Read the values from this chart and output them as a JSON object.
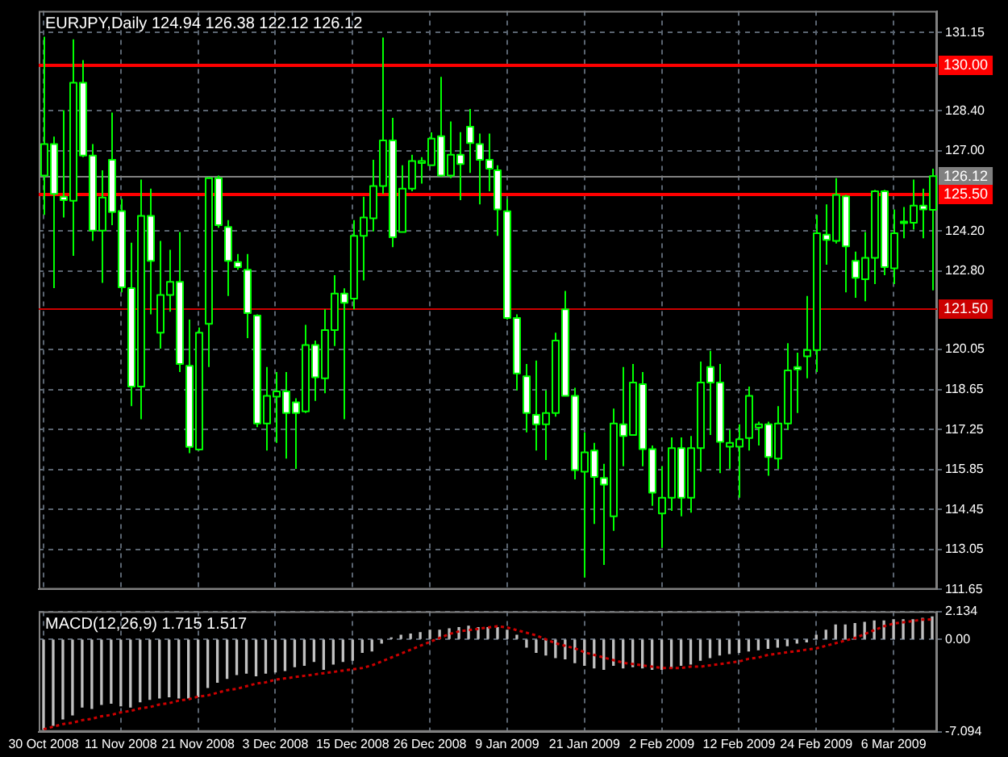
{
  "chart_data": [
    {
      "type": "candlestick",
      "title": "EURJPY,Daily 124.94 126.38 122.12 126.12",
      "ohlc": [
        [
          126.14,
          131.0,
          124.76,
          127.24
        ],
        [
          127.24,
          127.5,
          122.2,
          125.5
        ],
        [
          125.4,
          128.43,
          124.67,
          125.28
        ],
        [
          125.26,
          130.91,
          123.33,
          129.39
        ],
        [
          129.39,
          130.18,
          126.78,
          126.84
        ],
        [
          126.84,
          127.24,
          123.85,
          124.21
        ],
        [
          124.21,
          126.32,
          122.38,
          125.37
        ],
        [
          126.69,
          128.34,
          124.4,
          124.86
        ],
        [
          124.9,
          125.32,
          122.05,
          122.23
        ],
        [
          122.2,
          123.79,
          118.07,
          118.75
        ],
        [
          118.75,
          126.0,
          117.61,
          124.73
        ],
        [
          124.73,
          125.68,
          121.28,
          123.15
        ],
        [
          120.64,
          123.85,
          120.08,
          121.96
        ],
        [
          121.96,
          123.54,
          121.37,
          122.42
        ],
        [
          122.42,
          124.16,
          119.26,
          119.54
        ],
        [
          119.48,
          121.1,
          116.42,
          116.64
        ],
        [
          116.55,
          120.82,
          116.51,
          120.64
        ],
        [
          120.95,
          126.09,
          119.44,
          126.05
        ],
        [
          126.05,
          126.14,
          124.31,
          124.4
        ],
        [
          124.34,
          124.58,
          121.92,
          123.15
        ],
        [
          123.11,
          123.39,
          122.84,
          122.93
        ],
        [
          122.84,
          123.39,
          120.45,
          121.32
        ],
        [
          121.24,
          121.28,
          117.33,
          117.46
        ],
        [
          117.46,
          119.44,
          116.51,
          118.43
        ],
        [
          118.4,
          119.26,
          116.78,
          118.58
        ],
        [
          118.58,
          119.26,
          116.23,
          117.83
        ],
        [
          118.2,
          118.34,
          115.87,
          117.83
        ],
        [
          117.88,
          120.91,
          117.83,
          120.21
        ],
        [
          120.21,
          120.36,
          118.25,
          119.08
        ],
        [
          119.04,
          121.46,
          118.52,
          120.73
        ],
        [
          120.73,
          122.65,
          120.17,
          122.01
        ],
        [
          122.01,
          122.19,
          117.61,
          121.68
        ],
        [
          121.83,
          124.58,
          121.46,
          124.03
        ],
        [
          124.03,
          125.4,
          122.47,
          124.67
        ],
        [
          124.64,
          126.69,
          124.18,
          125.77
        ],
        [
          125.77,
          130.97,
          125.5,
          127.37
        ],
        [
          127.37,
          128.16,
          123.63,
          123.98
        ],
        [
          124.16,
          126.5,
          124.16,
          125.68
        ],
        [
          125.68,
          126.87,
          125.59,
          126.65
        ],
        [
          126.58,
          126.78,
          125.86,
          126.65
        ],
        [
          126.5,
          127.65,
          126.5,
          127.43
        ],
        [
          127.52,
          129.59,
          126.09,
          126.14
        ],
        [
          126.14,
          128.03,
          126.05,
          126.87
        ],
        [
          126.87,
          127.66,
          125.28,
          126.54
        ],
        [
          127.85,
          128.47,
          126.23,
          127.28
        ],
        [
          127.24,
          127.61,
          125.13,
          126.69
        ],
        [
          126.69,
          127.61,
          125.59,
          126.38
        ],
        [
          126.32,
          126.5,
          124.03,
          124.95
        ],
        [
          124.89,
          125.32,
          121.1,
          121.15
        ],
        [
          121.15,
          121.28,
          118.62,
          119.21
        ],
        [
          119.11,
          119.54,
          117.15,
          117.83
        ],
        [
          117.76,
          119.66,
          116.51,
          117.43
        ],
        [
          117.43,
          118.62,
          116.18,
          117.83
        ],
        [
          117.83,
          120.64,
          117.7,
          120.36
        ],
        [
          121.46,
          122.1,
          118.43,
          118.43
        ],
        [
          118.43,
          118.71,
          115.5,
          115.83
        ],
        [
          115.77,
          117.15,
          112.07,
          116.45
        ],
        [
          116.51,
          116.78,
          113.94,
          115.59
        ],
        [
          115.55,
          116.05,
          112.51,
          115.32
        ],
        [
          114.21,
          117.98,
          113.7,
          117.46
        ],
        [
          117.43,
          119.44,
          115.96,
          117.02
        ],
        [
          117.06,
          119.54,
          117.06,
          118.89
        ],
        [
          118.84,
          119.26,
          115.96,
          116.56
        ],
        [
          116.56,
          116.69,
          114.58,
          115.04
        ],
        [
          114.31,
          115.96,
          113.11,
          114.86
        ],
        [
          114.86,
          116.97,
          114.4,
          116.6
        ],
        [
          116.6,
          116.97,
          114.21,
          114.86
        ],
        [
          114.86,
          117.02,
          114.34,
          116.6
        ],
        [
          116.6,
          119.63,
          115.77,
          118.89
        ],
        [
          119.44,
          120.0,
          117.06,
          118.89
        ],
        [
          118.89,
          119.54,
          115.72,
          116.82
        ],
        [
          116.65,
          117.24,
          115.87,
          116.78
        ],
        [
          116.65,
          117.43,
          114.86,
          116.91
        ],
        [
          116.95,
          118.75,
          116.51,
          118.43
        ],
        [
          117.32,
          117.52,
          116.69,
          117.43
        ],
        [
          117.43,
          117.52,
          115.63,
          116.29
        ],
        [
          116.23,
          118.07,
          115.87,
          117.46
        ],
        [
          117.46,
          120.27,
          117.24,
          119.32
        ],
        [
          119.44,
          119.94,
          117.83,
          119.35
        ],
        [
          119.81,
          121.92,
          119.04,
          120.03
        ],
        [
          120.03,
          124.76,
          119.26,
          124.12
        ],
        [
          124.07,
          125.13,
          123.02,
          123.89
        ],
        [
          123.85,
          126.05,
          123.76,
          125.46
        ],
        [
          125.41,
          125.46,
          122.05,
          123.66
        ],
        [
          123.15,
          123.48,
          121.86,
          122.56
        ],
        [
          122.51,
          124.16,
          121.74,
          123.26
        ],
        [
          123.26,
          125.64,
          122.34,
          125.59
        ],
        [
          125.59,
          125.64,
          122.65,
          122.93
        ],
        [
          122.89,
          124.95,
          122.34,
          124.12
        ],
        [
          124.53,
          125.04,
          123.94,
          124.49
        ],
        [
          124.49,
          126.0,
          124.25,
          125.09
        ],
        [
          125.09,
          125.68,
          123.94,
          124.95
        ],
        [
          124.94,
          126.38,
          122.12,
          126.12
        ]
      ],
      "color": "#00ff00",
      "colors": [
        "#000000",
        "#ffffff",
        "#ffffff",
        "#000000",
        "#ffffff",
        "#ffffff",
        "#000000",
        "#ffffff",
        "#ffffff",
        "#ffffff",
        "#000000",
        "#ffffff",
        "#000000",
        "#000000",
        "#ffffff",
        "#ffffff",
        "#000000",
        "#000000",
        "#ffffff",
        "#ffffff",
        "#ffffff",
        "#ffffff",
        "#ffffff",
        "#000000",
        "#000000",
        "#ffffff",
        "#ffffff",
        "#000000",
        "#ffffff",
        "#000000",
        "#000000",
        "#ffffff",
        "#000000",
        "#000000",
        "#000000",
        "#000000",
        "#ffffff",
        "#000000",
        "#000000",
        "#000000",
        "#000000",
        "#ffffff",
        "#000000",
        "#ffffff",
        "#ffffff",
        "#ffffff",
        "#ffffff",
        "#ffffff",
        "#ffffff",
        "#ffffff",
        "#ffffff",
        "#ffffff",
        "#000000",
        "#000000",
        "#ffffff",
        "#ffffff",
        "#000000",
        "#ffffff",
        "#ffffff",
        "#000000",
        "#ffffff",
        "#000000",
        "#ffffff",
        "#ffffff",
        "#000000",
        "#000000",
        "#ffffff",
        "#000000",
        "#000000",
        "#ffffff",
        "#ffffff",
        "#000000",
        "#000000",
        "#000000",
        "#000000",
        "#ffffff",
        "#000000",
        "#000000",
        "#ffffff",
        "#000000",
        "#000000",
        "#ffffff",
        "#000000",
        "#ffffff",
        "#ffffff",
        "#000000",
        "#000000",
        "#ffffff",
        "#000000",
        "#ffffff",
        "#000000",
        "#ffffff",
        "#000000"
      ],
      "ylim": [
        111.65,
        131.9
      ],
      "yticks": [
        131.15,
        {
          "value": 128.4,
          "label": "128.40"
        },
        {
          "value": 127,
          "label": "127.00"
        },
        {
          "value": 124.2,
          "label": "124.20"
        },
        {
          "value": 122.8,
          "label": "122.80"
        },
        120.05,
        118.65,
        117.25,
        115.85,
        114.45,
        113.05,
        111.65
      ],
      "grid": true,
      "tick_labels": "y",
      "ref_lines": [
        {
          "axis": "y",
          "value": 130.0,
          "label": "130.00",
          "color": "#ff0000"
        },
        {
          "axis": "y",
          "value": 126.12,
          "label": "126.12",
          "color": "#808080"
        },
        {
          "axis": "y",
          "value": 125.5,
          "label": "125.50",
          "color": "#ff0000"
        },
        {
          "axis": "y",
          "value": 121.5,
          "label": "121.50",
          "color": "#cc0000"
        }
      ]
    },
    {
      "type": "bar",
      "title": "MACD(12,26,9) 1.715 1.517",
      "categories": [
        "30 Oct 2008",
        null,
        null,
        null,
        null,
        null,
        null,
        null,
        "11 Nov 2008",
        null,
        null,
        null,
        null,
        null,
        null,
        null,
        "21 Nov 2008",
        null,
        null,
        null,
        null,
        null,
        null,
        null,
        "3 Dec 2008",
        null,
        null,
        null,
        null,
        null,
        null,
        null,
        "15 Dec 2008",
        null,
        null,
        null,
        null,
        null,
        null,
        null,
        "26 Dec 2008",
        null,
        null,
        null,
        null,
        null,
        null,
        null,
        "9 Jan 2009",
        null,
        null,
        null,
        null,
        null,
        null,
        null,
        "21 Jan 2009",
        null,
        null,
        null,
        null,
        null,
        null,
        null,
        "2 Feb 2009",
        null,
        null,
        null,
        null,
        null,
        null,
        null,
        "12 Feb 2009",
        null,
        null,
        null,
        null,
        null,
        null,
        null,
        "24 Feb 2009",
        null,
        null,
        null,
        null,
        null,
        null,
        null,
        "6 Mar 2009",
        null,
        null,
        null,
        null
      ],
      "series": [
        {
          "type": "bar",
          "color": "#c0c0c0",
          "values": [
            -6.9,
            -6.6,
            -6.1,
            -5.8,
            -5.2,
            -5.3,
            -5.0,
            -4.9,
            -5.1,
            -5.2,
            -4.8,
            -4.6,
            -4.5,
            -4.4,
            -4.5,
            -4.5,
            -4.4,
            -3.7,
            -3.3,
            -3.0,
            -2.7,
            -2.6,
            -2.8,
            -2.6,
            -2.5,
            -2.4,
            -2.1,
            -2.0,
            -1.7,
            -2.3,
            -1.9,
            -1.7,
            -1.6,
            -1.0,
            -0.9,
            -0.3,
            0.1,
            0.3,
            0.4,
            0.5,
            0.7,
            0.7,
            0.8,
            0.9,
            1.0,
            0.9,
            0.9,
            0.9,
            0.7,
            0.3,
            -0.6,
            -1.0,
            -1.2,
            -1.4,
            -1.5,
            -1.8,
            -2.0,
            -2.2,
            -2.3,
            -2.0,
            -2.2,
            -2.1,
            -2.2,
            -2.3,
            -2.3,
            -2.2,
            -2.0,
            -1.9,
            -1.6,
            -1.4,
            -1.2,
            -1.1,
            -1.0,
            -0.9,
            -0.8,
            -0.7,
            -0.6,
            -0.5,
            -0.3,
            -0.2,
            0.3,
            0.7,
            1.1,
            1.1,
            1.2,
            1.3,
            1.4,
            1.4,
            1.5,
            1.5,
            1.5,
            1.6,
            1.715
          ]
        },
        {
          "type": "line",
          "color": "#cc0000",
          "line_style": "dotted",
          "marker": "none",
          "values": [
            -6.9,
            -6.7,
            -6.5,
            -6.4,
            -6.2,
            -6.1,
            -5.9,
            -5.8,
            -5.6,
            -5.5,
            -5.3,
            -5.2,
            -5.0,
            -4.9,
            -4.7,
            -4.6,
            -4.4,
            -4.3,
            -4.1,
            -3.9,
            -3.8,
            -3.6,
            -3.4,
            -3.3,
            -3.1,
            -3.0,
            -2.9,
            -2.8,
            -2.7,
            -2.6,
            -2.5,
            -2.4,
            -2.3,
            -2.2,
            -2.0,
            -1.7,
            -1.4,
            -1.1,
            -0.8,
            -0.5,
            -0.2,
            0.1,
            0.4,
            0.6,
            0.7,
            0.8,
            0.9,
            1.0,
            0.9,
            0.7,
            0.5,
            0.3,
            0.0,
            -0.3,
            -0.5,
            -0.7,
            -1.0,
            -1.2,
            -1.4,
            -1.6,
            -1.8,
            -1.9,
            -2.0,
            -2.1,
            -2.2,
            -2.2,
            -2.2,
            -2.1,
            -2.1,
            -2.0,
            -1.9,
            -1.8,
            -1.7,
            -1.5,
            -1.4,
            -1.2,
            -1.1,
            -1.0,
            -0.9,
            -0.8,
            -0.7,
            -0.5,
            -0.3,
            -0.1,
            0.1,
            0.4,
            0.7,
            1.0,
            1.2,
            1.3,
            1.4,
            1.5,
            1.517
          ]
        }
      ],
      "ylim": [
        -7.094,
        2.134
      ],
      "yticks": [
        2.134,
        {
          "value": 0,
          "label": "0.00"
        },
        -7.094
      ],
      "grid": true
    }
  ]
}
